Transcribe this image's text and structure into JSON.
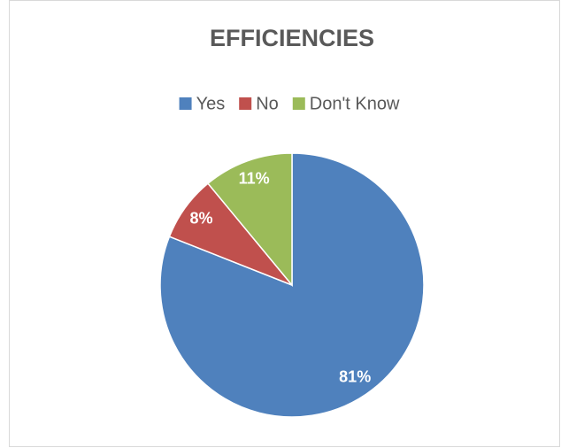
{
  "chart_data": {
    "type": "pie",
    "title": "EFFICIENCIES",
    "categories": [
      "Yes",
      "No",
      "Don't Know"
    ],
    "values": [
      81,
      8,
      11
    ],
    "value_labels": [
      "81%",
      "8%",
      "11%"
    ],
    "colors": [
      "#4f81bd",
      "#c0504d",
      "#9bbb59"
    ],
    "legend": "top"
  }
}
